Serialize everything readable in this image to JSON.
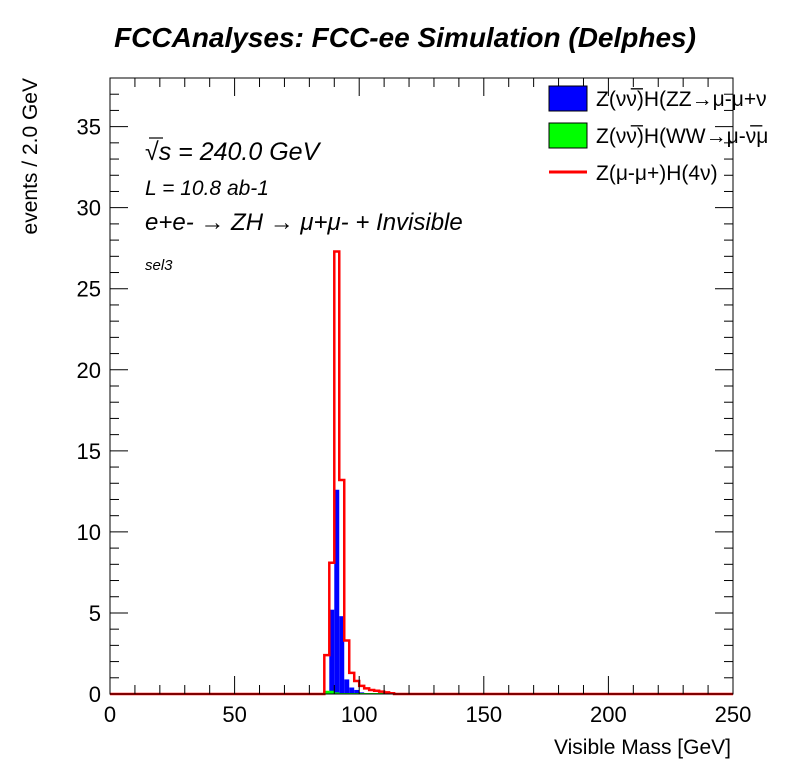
{
  "chart_data": {
    "type": "bar",
    "title": "FCCAnalyses: FCC-ee Simulation (Delphes)",
    "xlabel": "Visible Mass [GeV]",
    "ylabel": "events / 2.0 GeV",
    "xlim": [
      0,
      250
    ],
    "ylim": [
      0,
      38
    ],
    "bin_width": 2.0,
    "log_scale": false,
    "grid": false,
    "legend_position": "top-right",
    "x_ticks": [
      "0",
      "50",
      "100",
      "150",
      "200",
      "250"
    ],
    "y_ticks": [
      "0",
      "5",
      "10",
      "15",
      "20",
      "25",
      "30",
      "35"
    ],
    "annotations": {
      "sqrt_s": "√s = 240.0 GeV",
      "lumi": "L = 10.8 ab-1",
      "process": "e+e- → ZH → μ+μ- + Invisible",
      "selection": "sel3"
    },
    "series": [
      {
        "name": "Z(νν̅)H(ZZ→μ-μ+ν",
        "style": "filled",
        "color": "#0000ff",
        "bin_edges": [
          86,
          88,
          90,
          92,
          94,
          96,
          98,
          100,
          102
        ],
        "values": [
          0.1,
          5.2,
          12.6,
          4.8,
          0.9,
          0.4,
          0.25,
          0.1
        ]
      },
      {
        "name": "Z(νν̅)H(WW→μ-ν̅μ",
        "style": "filled",
        "color": "#00ff00",
        "bin_edges": [
          86,
          88,
          90,
          92,
          94,
          96
        ],
        "values": [
          0.2,
          0.2,
          0.1,
          0.05,
          0.02
        ]
      },
      {
        "name": "Z(μ-μ+)H(4ν)",
        "style": "line",
        "color": "#ff0000",
        "bin_edges": [
          86,
          88,
          90,
          92,
          94,
          96,
          98,
          100,
          102,
          104,
          106,
          108,
          110,
          112,
          114
        ],
        "values": [
          2.4,
          8.1,
          27.3,
          13.2,
          3.3,
          1.3,
          0.8,
          0.5,
          0.35,
          0.25,
          0.2,
          0.15,
          0.1,
          0.05
        ]
      }
    ]
  }
}
